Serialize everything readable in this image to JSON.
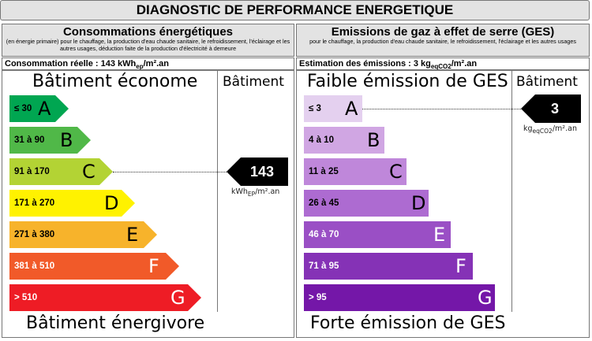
{
  "title": "DIAGNOSTIC DE PERFORMANCE ENERGETIQUE",
  "left": {
    "header_title": "Consommations énergétiques",
    "header_subtitle": "(en énergie primaire) pour le chauffage, la production d'eau chaude sanitaire, le refroidissement, l'éclairage et les autres usages, déduction faite de la production d'électricité à demeure",
    "estimate_prefix": "Consommation réelle : 143 kWh",
    "estimate_sub": "ep",
    "estimate_suffix": "/m².an",
    "top_label": "Bâtiment économe",
    "bottom_label": "Bâtiment énergivore",
    "column_label": "Bâtiment",
    "value": "143",
    "unit_prefix": "kWh",
    "unit_sub": "EP",
    "unit_suffix": "/m².an",
    "current_class": "C",
    "bars": [
      {
        "range": "≤ 30",
        "letter": "A",
        "color": "#00a651"
      },
      {
        "range": "31 à 90",
        "letter": "B",
        "color": "#50b848"
      },
      {
        "range": "91 à 170",
        "letter": "C",
        "color": "#b3d334"
      },
      {
        "range": "171 à 270",
        "letter": "D",
        "color": "#fff200"
      },
      {
        "range": "271 à 380",
        "letter": "E",
        "color": "#f7b32b"
      },
      {
        "range": "381 à 510",
        "letter": "F",
        "color": "#f15a29"
      },
      {
        "range": "> 510",
        "letter": "G",
        "color": "#ee1c25"
      }
    ]
  },
  "right": {
    "header_title": "Emissions de gaz à effet de serre (GES)",
    "header_subtitle": "pour le chauffage, la production d'eau chaude sanitaire, le refroidissement, l'éclairage et les autres usages",
    "estimate_prefix": "Estimation des émissions : 3 kg",
    "estimate_sub": "eqCO2",
    "estimate_suffix": "/m².an",
    "top_label": "Faible émission de GES",
    "bottom_label": "Forte émission de GES",
    "column_label": "Bâtiment",
    "value": "3",
    "unit_prefix": "kg",
    "unit_sub": "eqCO2",
    "unit_suffix": "/m².an",
    "current_class": "A",
    "bars": [
      {
        "range": "≤ 3",
        "letter": "A",
        "color": "#e4d0ef"
      },
      {
        "range": "4 à 10",
        "letter": "B",
        "color": "#d0a6e3"
      },
      {
        "range": "11 à 25",
        "letter": "C",
        "color": "#bf87da"
      },
      {
        "range": "26 à 45",
        "letter": "D",
        "color": "#ad6bd1"
      },
      {
        "range": "46 à 70",
        "letter": "E",
        "color": "#9a4fc5"
      },
      {
        "range": "71 à 95",
        "letter": "F",
        "color": "#8532b6"
      },
      {
        "range": "> 95",
        "letter": "G",
        "color": "#7417a8"
      }
    ]
  }
}
